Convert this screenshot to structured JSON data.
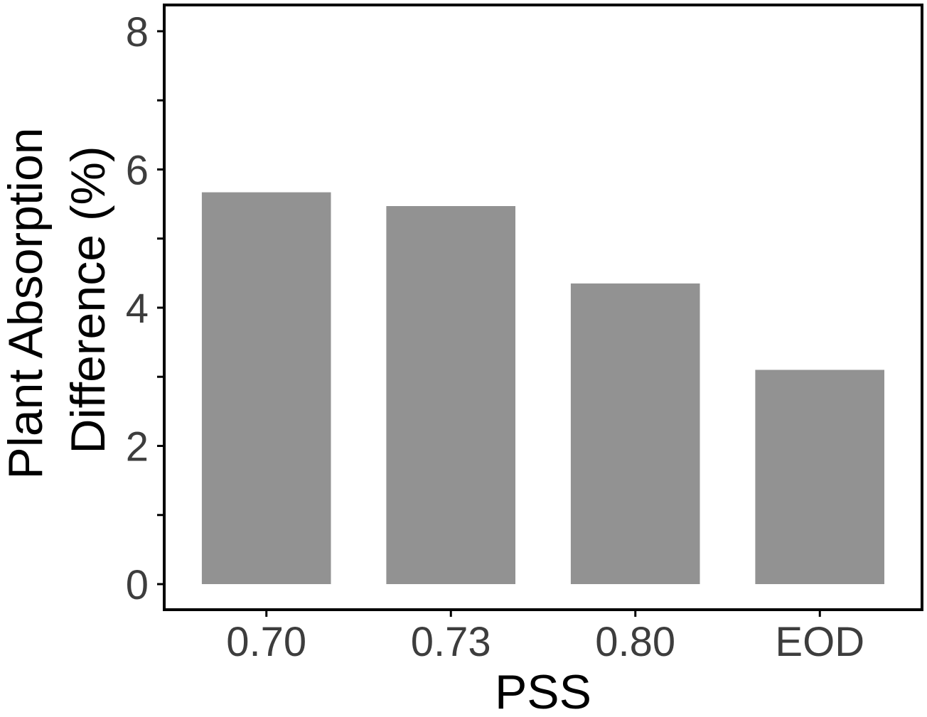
{
  "chart_data": {
    "type": "bar",
    "categories": [
      "0.70",
      "0.73",
      "0.80",
      "EOD"
    ],
    "values": [
      5.67,
      5.47,
      4.35,
      3.1
    ],
    "title": "",
    "xlabel": "PSS",
    "ylabel_lines": [
      "Plant Absorption",
      "Difference (%)"
    ],
    "ylim": [
      -0.37,
      8.38
    ],
    "yticks": [
      0,
      2,
      4,
      6,
      8
    ],
    "yticks_minor": [
      1,
      3,
      5,
      7
    ],
    "grid": false,
    "legend": "none",
    "colors": {
      "bar": "#929292",
      "axis": "#000000",
      "tick_label": "#3d3d3d",
      "axis_title": "#000000"
    }
  }
}
